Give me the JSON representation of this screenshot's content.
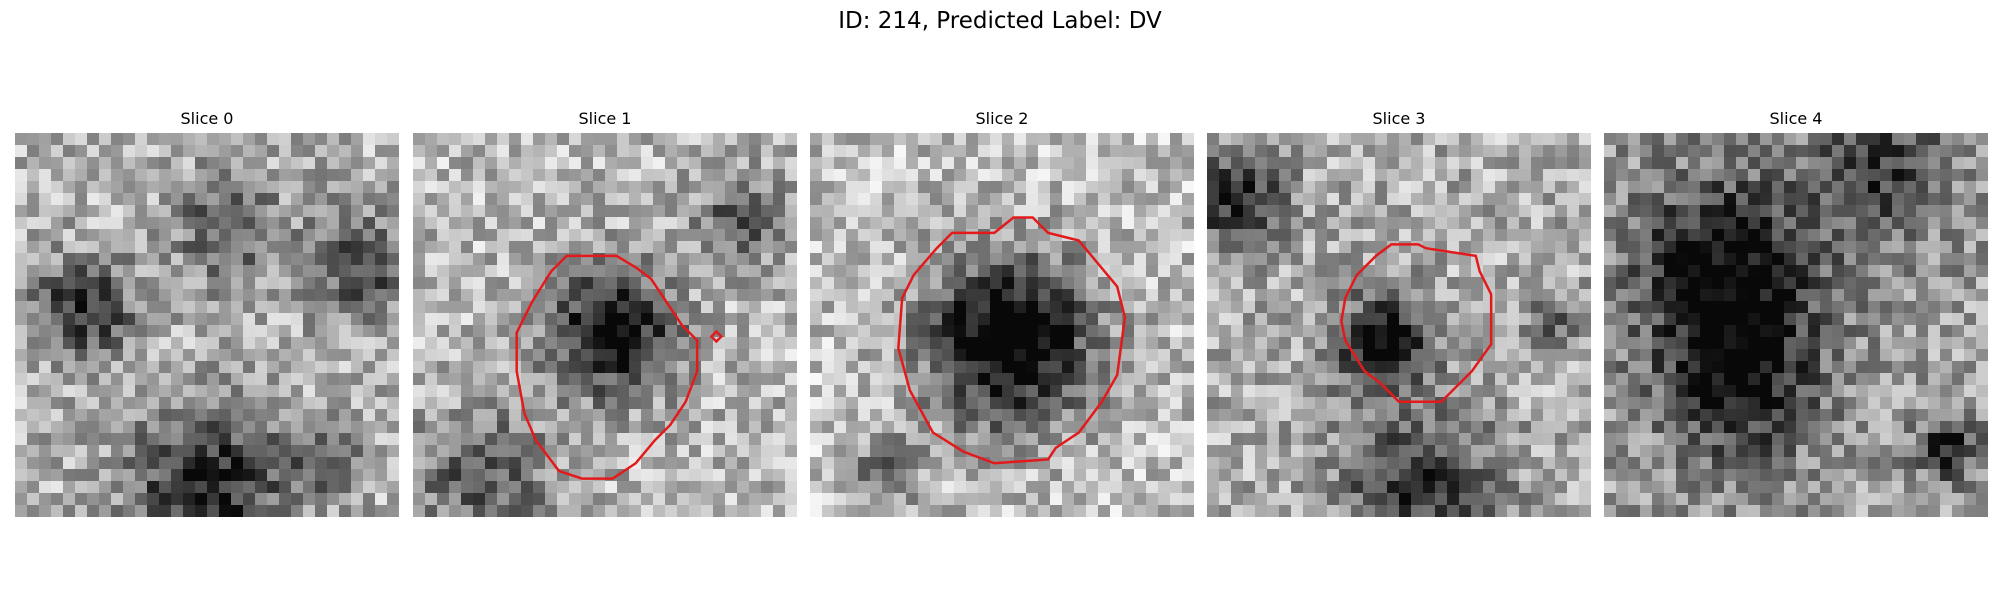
{
  "figure": {
    "title": "ID: 214, Predicted Label: DV",
    "contour_color": "#e31a1c",
    "colormap": "gray",
    "slices": [
      {
        "title": "Slice 0",
        "seed": 11,
        "mean": 0.7,
        "dark_blobs": [
          [
            0.18,
            0.46,
            0.16,
            0.55
          ],
          [
            0.55,
            0.25,
            0.18,
            0.35
          ],
          [
            0.9,
            0.35,
            0.18,
            0.4
          ],
          [
            0.5,
            0.92,
            0.25,
            0.6
          ],
          [
            0.8,
            0.85,
            0.12,
            0.35
          ]
        ],
        "contour": []
      },
      {
        "title": "Slice 1",
        "seed": 23,
        "mean": 0.72,
        "dark_blobs": [
          [
            0.52,
            0.52,
            0.2,
            0.75
          ],
          [
            0.85,
            0.22,
            0.14,
            0.4
          ],
          [
            0.18,
            0.9,
            0.22,
            0.4
          ]
        ],
        "contour": [
          [
            0.4,
            0.32
          ],
          [
            0.46,
            0.32
          ],
          [
            0.53,
            0.32
          ],
          [
            0.58,
            0.35
          ],
          [
            0.62,
            0.38
          ],
          [
            0.66,
            0.44
          ],
          [
            0.7,
            0.5
          ],
          [
            0.74,
            0.54
          ],
          [
            0.74,
            0.62
          ],
          [
            0.71,
            0.7
          ],
          [
            0.67,
            0.76
          ],
          [
            0.63,
            0.8
          ],
          [
            0.58,
            0.86
          ],
          [
            0.52,
            0.9
          ],
          [
            0.44,
            0.9
          ],
          [
            0.38,
            0.88
          ],
          [
            0.32,
            0.8
          ],
          [
            0.29,
            0.73
          ],
          [
            0.27,
            0.62
          ],
          [
            0.27,
            0.52
          ],
          [
            0.31,
            0.44
          ],
          [
            0.36,
            0.36
          ]
        ],
        "marker": [
          0.79,
          0.53
        ]
      },
      {
        "title": "Slice 2",
        "seed": 37,
        "mean": 0.75,
        "dark_blobs": [
          [
            0.52,
            0.54,
            0.27,
            0.88
          ],
          [
            0.2,
            0.88,
            0.1,
            0.45
          ]
        ],
        "contour": [
          [
            0.37,
            0.26
          ],
          [
            0.48,
            0.26
          ],
          [
            0.53,
            0.22
          ],
          [
            0.58,
            0.22
          ],
          [
            0.62,
            0.26
          ],
          [
            0.7,
            0.28
          ],
          [
            0.75,
            0.34
          ],
          [
            0.8,
            0.4
          ],
          [
            0.82,
            0.48
          ],
          [
            0.8,
            0.63
          ],
          [
            0.76,
            0.7
          ],
          [
            0.7,
            0.78
          ],
          [
            0.64,
            0.82
          ],
          [
            0.62,
            0.85
          ],
          [
            0.48,
            0.86
          ],
          [
            0.4,
            0.83
          ],
          [
            0.32,
            0.78
          ],
          [
            0.26,
            0.67
          ],
          [
            0.23,
            0.56
          ],
          [
            0.24,
            0.43
          ],
          [
            0.27,
            0.37
          ],
          [
            0.33,
            0.3
          ]
        ]
      },
      {
        "title": "Slice 3",
        "seed": 51,
        "mean": 0.68,
        "dark_blobs": [
          [
            0.46,
            0.55,
            0.16,
            0.65
          ],
          [
            0.08,
            0.18,
            0.16,
            0.55
          ],
          [
            0.55,
            0.92,
            0.25,
            0.5
          ],
          [
            0.9,
            0.5,
            0.1,
            0.3
          ]
        ],
        "contour": [
          [
            0.48,
            0.29
          ],
          [
            0.55,
            0.29
          ],
          [
            0.57,
            0.3
          ],
          [
            0.7,
            0.32
          ],
          [
            0.71,
            0.36
          ],
          [
            0.74,
            0.42
          ],
          [
            0.74,
            0.55
          ],
          [
            0.69,
            0.62
          ],
          [
            0.63,
            0.68
          ],
          [
            0.61,
            0.7
          ],
          [
            0.5,
            0.7
          ],
          [
            0.45,
            0.65
          ],
          [
            0.41,
            0.62
          ],
          [
            0.36,
            0.54
          ],
          [
            0.35,
            0.49
          ],
          [
            0.36,
            0.43
          ],
          [
            0.39,
            0.37
          ],
          [
            0.44,
            0.32
          ]
        ]
      },
      {
        "title": "Slice 4",
        "seed": 67,
        "mean": 0.62,
        "dark_blobs": [
          [
            0.32,
            0.35,
            0.3,
            0.6
          ],
          [
            0.35,
            0.65,
            0.25,
            0.55
          ],
          [
            0.72,
            0.1,
            0.22,
            0.4
          ],
          [
            0.9,
            0.82,
            0.1,
            0.5
          ]
        ],
        "contour": []
      }
    ]
  }
}
